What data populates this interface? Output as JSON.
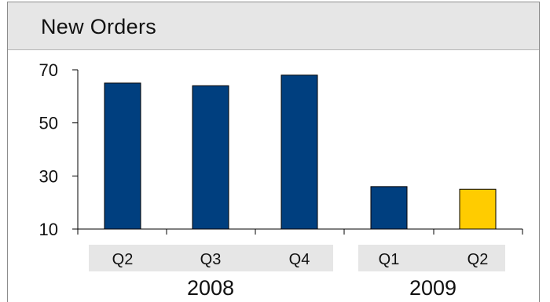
{
  "chart_data": {
    "type": "bar",
    "title": "New Orders",
    "xlabel": "",
    "ylabel": "",
    "ylim": [
      10,
      70
    ],
    "yticks": [
      10,
      30,
      50,
      70
    ],
    "grid": false,
    "legend": "none",
    "categories": [
      "Q2",
      "Q3",
      "Q4",
      "Q1",
      "Q2"
    ],
    "groups": [
      {
        "label": "2008",
        "categories": [
          0,
          1,
          2
        ]
      },
      {
        "label": "2009",
        "categories": [
          3,
          4
        ]
      }
    ],
    "values": [
      65,
      64,
      68,
      26,
      25
    ],
    "bar_colors": [
      "#003f7f",
      "#003f7f",
      "#003f7f",
      "#003f7f",
      "#ffcc00"
    ]
  },
  "colors": {
    "primary_bar": "#003f7f",
    "highlight_bar": "#ffcc00",
    "header_bg": "#e6e6e6",
    "category_band": "#e6e6e6"
  }
}
